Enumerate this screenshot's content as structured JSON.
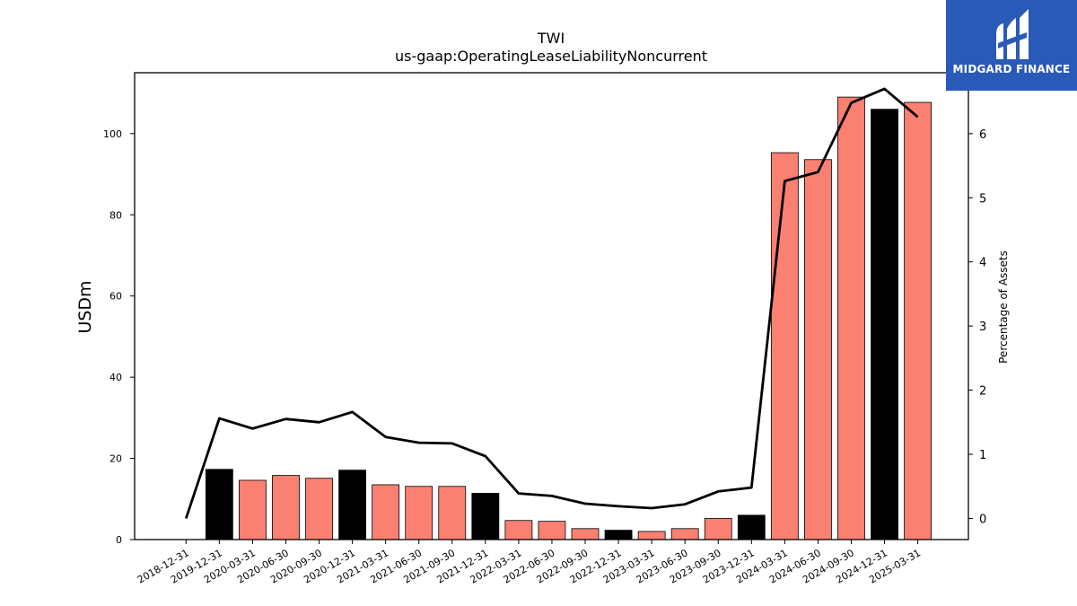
{
  "brand": {
    "name": "MIDGARD FINANCE",
    "logo_icon": "midgard-logo-icon",
    "background_color": "#2a5ab8"
  },
  "chart_data": {
    "type": "bar",
    "title": "TWI",
    "subtitle": "us-gaap:OperatingLeaseLiabilityNoncurrent",
    "ylabel": "USDm",
    "y2label": "Percentage of Assets",
    "ylim": [
      0,
      115
    ],
    "y2lim": [
      -0.33,
      6.95
    ],
    "yticks": [
      0,
      20,
      40,
      60,
      80,
      100
    ],
    "y2ticks": [
      0,
      1,
      2,
      3,
      4,
      5,
      6
    ],
    "categories": [
      "2018-12-31",
      "2019-12-31",
      "2020-03-31",
      "2020-06-30",
      "2020-09-30",
      "2020-12-31",
      "2021-03-31",
      "2021-06-30",
      "2021-09-30",
      "2021-12-31",
      "2022-03-31",
      "2022-06-30",
      "2022-09-30",
      "2022-12-31",
      "2023-03-31",
      "2023-06-30",
      "2023-09-30",
      "2023-12-31",
      "2024-03-31",
      "2024-06-30",
      "2024-09-30",
      "2024-12-31",
      "2025-03-31"
    ],
    "series": [
      {
        "type": "bar",
        "axis": "left",
        "values": [
          0,
          17.3,
          14.6,
          15.8,
          15.1,
          17.1,
          13.5,
          13.1,
          13.1,
          11.4,
          4.7,
          4.5,
          2.7,
          2.3,
          2.0,
          2.7,
          5.2,
          6.0,
          95.3,
          93.6,
          109.0,
          106.0,
          107.7
        ],
        "colors": [
          "#fa8072",
          "#000000",
          "#fa8072",
          "#fa8072",
          "#fa8072",
          "#000000",
          "#fa8072",
          "#fa8072",
          "#fa8072",
          "#000000",
          "#fa8072",
          "#fa8072",
          "#fa8072",
          "#000000",
          "#fa8072",
          "#fa8072",
          "#fa8072",
          "#000000",
          "#fa8072",
          "#fa8072",
          "#fa8072",
          "#000000",
          "#fa8072"
        ]
      },
      {
        "type": "line",
        "axis": "right",
        "color": "#000000",
        "values": [
          0.0,
          1.56,
          1.4,
          1.55,
          1.5,
          1.66,
          1.27,
          1.18,
          1.17,
          0.97,
          0.39,
          0.35,
          0.23,
          0.19,
          0.16,
          0.22,
          0.42,
          0.48,
          5.26,
          5.4,
          6.48,
          6.7,
          6.26
        ]
      }
    ],
    "grid": false,
    "legend": "none"
  }
}
